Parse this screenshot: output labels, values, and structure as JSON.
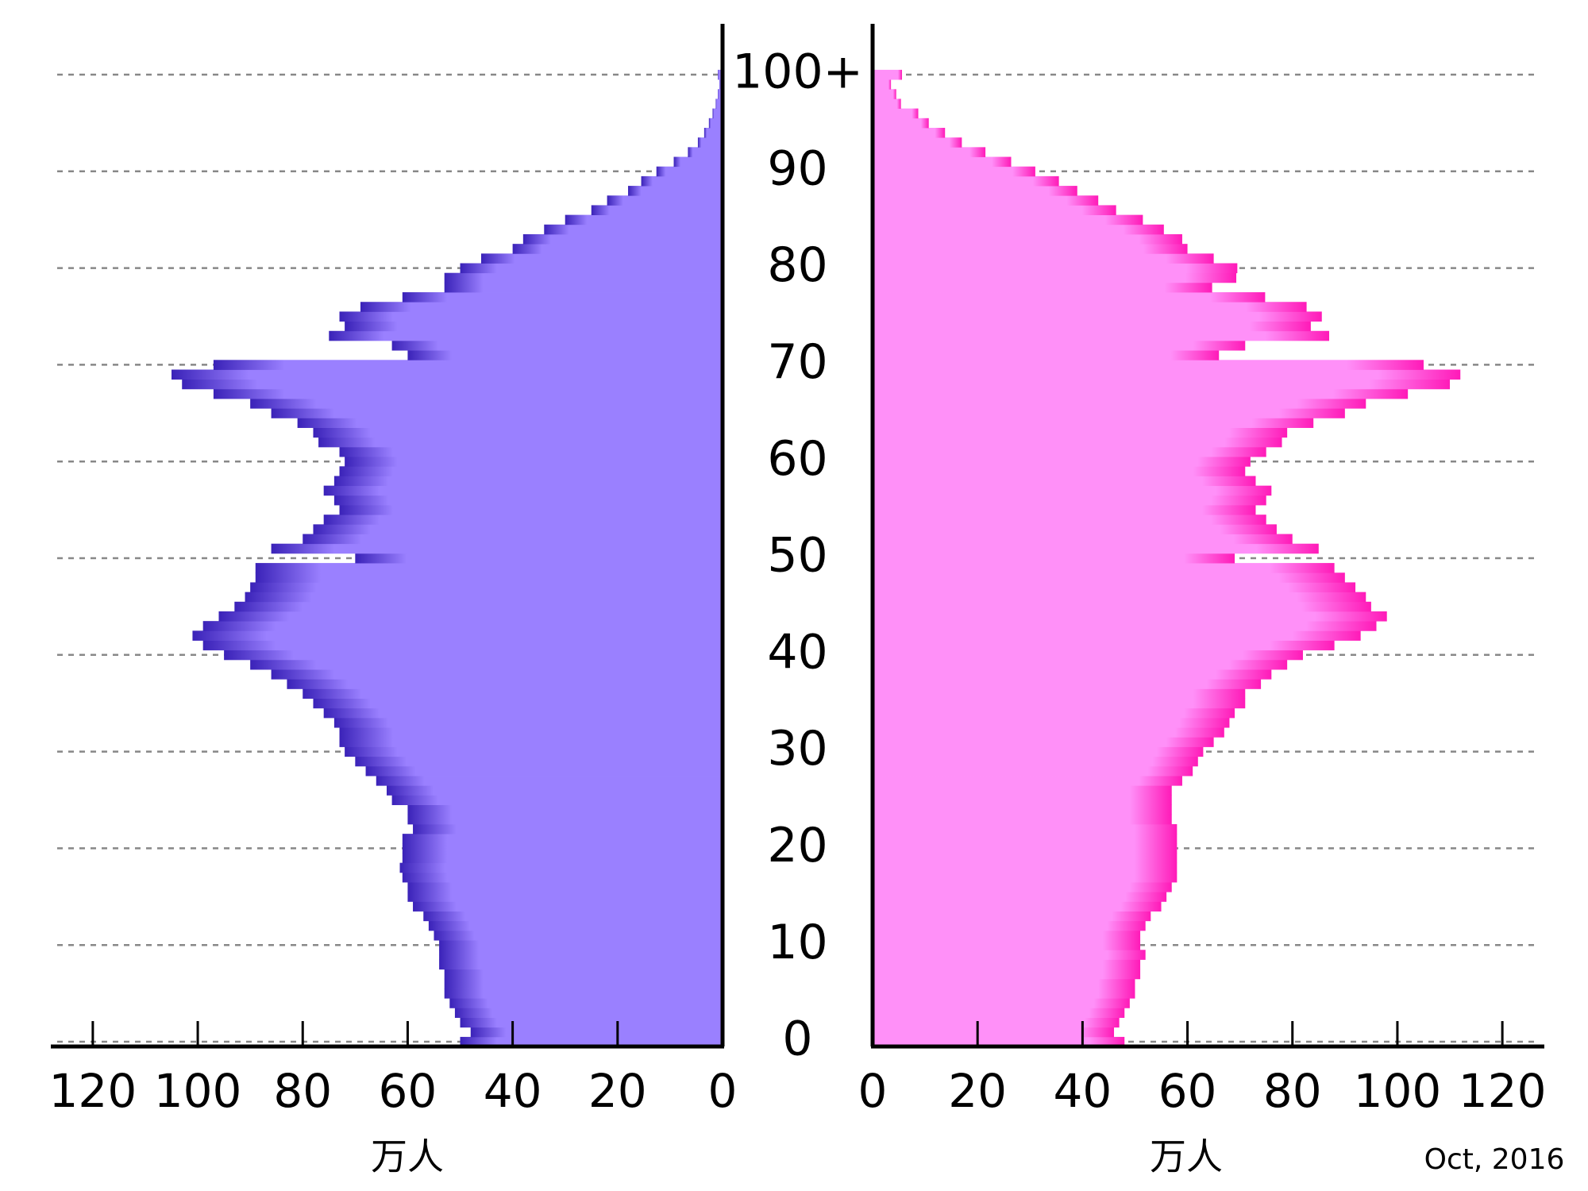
{
  "chart_data": {
    "type": "pyramid",
    "categories": [
      "0",
      null,
      null,
      null,
      null,
      null,
      null,
      null,
      null,
      null,
      "10",
      null,
      null,
      null,
      null,
      null,
      null,
      null,
      null,
      null,
      "20",
      null,
      null,
      null,
      null,
      null,
      null,
      null,
      null,
      null,
      "30",
      null,
      null,
      null,
      null,
      null,
      null,
      null,
      null,
      null,
      "40",
      null,
      null,
      null,
      null,
      null,
      null,
      null,
      null,
      null,
      "50",
      null,
      null,
      null,
      null,
      null,
      null,
      null,
      null,
      null,
      "60",
      null,
      null,
      null,
      null,
      null,
      null,
      null,
      null,
      null,
      "70",
      null,
      null,
      null,
      null,
      null,
      null,
      null,
      null,
      null,
      "80",
      null,
      null,
      null,
      null,
      null,
      null,
      null,
      null,
      null,
      "90",
      null,
      null,
      null,
      null,
      null,
      null,
      null,
      null,
      null,
      "100+"
    ],
    "series": [
      {
        "color": "#9a80ff",
        "edge_color": "#3a22b8",
        "values": [
          50,
          48,
          50,
          51,
          52,
          53,
          53,
          53,
          54,
          54,
          54,
          55,
          56,
          57,
          59,
          60,
          60,
          61,
          61.5,
          61,
          61,
          61,
          59,
          60,
          60,
          63,
          64,
          66,
          68,
          70,
          72,
          73,
          73,
          74,
          76,
          78,
          80,
          83,
          86,
          90,
          95,
          99,
          101,
          99,
          96,
          93,
          91,
          90,
          89,
          89,
          70,
          86,
          80,
          78,
          76,
          73,
          74,
          76,
          74,
          73,
          72,
          73,
          77,
          78,
          81,
          86,
          90,
          97,
          103,
          105,
          97,
          60,
          63,
          75,
          72,
          73,
          69,
          61,
          53,
          53,
          50,
          46,
          40,
          38,
          34,
          30,
          25,
          22,
          18,
          15.5,
          12.6,
          9.3,
          6.6,
          4.7,
          3.5,
          2.6,
          1.9,
          1.3,
          0.9,
          0.6,
          0.9
        ]
      },
      {
        "color": "#ff90f8",
        "edge_color": "#ff1ab8",
        "values": [
          48,
          46,
          47,
          48,
          49,
          50,
          50,
          51,
          51,
          52,
          51,
          51,
          52,
          53,
          55,
          56,
          57,
          58,
          58,
          58,
          58,
          58,
          58,
          57,
          57,
          57,
          57,
          59,
          61,
          62,
          63,
          65,
          67,
          68,
          69,
          71,
          71,
          74,
          76,
          79,
          82,
          88,
          93,
          96,
          98,
          95,
          94,
          92,
          90,
          88,
          69,
          85,
          80,
          77,
          75,
          73,
          75,
          76,
          73,
          71,
          72,
          75,
          78,
          79,
          84,
          90,
          94,
          102,
          110,
          112,
          105,
          66,
          71,
          87,
          83.5,
          85.6,
          82.7,
          74.8,
          64.7,
          69.3,
          69.5,
          65,
          60,
          59,
          55.5,
          51.5,
          46.4,
          43,
          39,
          35.5,
          31,
          26.4,
          21.5,
          17,
          13.8,
          10.7,
          8.7,
          5.4,
          4.5,
          3.5,
          5.6
        ]
      }
    ],
    "xlim": [
      0,
      128
    ],
    "xticks": [
      0,
      20,
      40,
      60,
      80,
      100,
      120
    ],
    "xlabel": "万人",
    "note": "Oct, 2016",
    "grid": true
  }
}
